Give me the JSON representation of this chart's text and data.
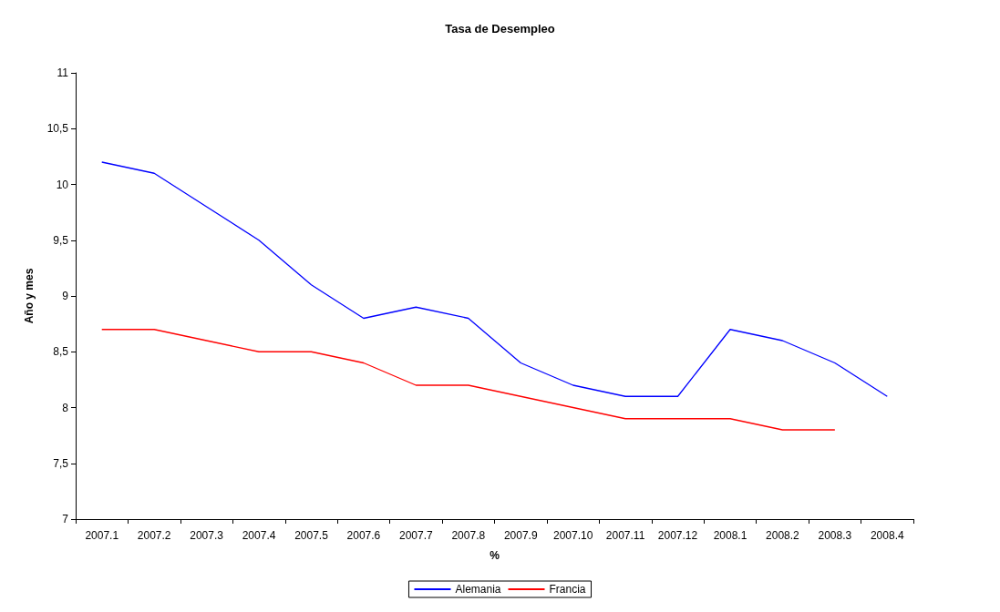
{
  "chart_data": {
    "type": "line",
    "title": "Tasa de Desempleo",
    "xlabel": "%",
    "ylabel": "Año y mes",
    "categories": [
      "2007.1",
      "2007.2",
      "2007.3",
      "2007.4",
      "2007.5",
      "2007.6",
      "2007.7",
      "2007.8",
      "2007.9",
      "2007.10",
      "2007.11",
      "2007.12",
      "2008.1",
      "2008.2",
      "2008.3",
      "2008.4"
    ],
    "series": [
      {
        "name": "Alemania",
        "color": "#0000ff",
        "values": [
          10.2,
          10.1,
          9.8,
          9.5,
          9.1,
          8.8,
          8.9,
          8.8,
          8.4,
          8.2,
          8.1,
          8.1,
          8.7,
          8.6,
          8.4,
          8.1
        ]
      },
      {
        "name": "Francia",
        "color": "#ff0000",
        "values": [
          8.7,
          8.7,
          8.6,
          8.5,
          8.5,
          8.4,
          8.2,
          8.2,
          8.1,
          8.0,
          7.9,
          7.9,
          7.9,
          7.8,
          7.8,
          null
        ]
      }
    ],
    "ylim": [
      7,
      11
    ],
    "yticks": [
      7,
      {
        "value": 7.5,
        "label": "7,5"
      },
      8,
      {
        "value": 8.5,
        "label": "8,5"
      },
      9,
      {
        "value": 9.5,
        "label": "9,5"
      },
      10,
      {
        "value": 10.5,
        "label": "10,5"
      },
      11
    ],
    "grid": false,
    "legend": "bottom",
    "marker": "none",
    "line_style": "solid"
  }
}
